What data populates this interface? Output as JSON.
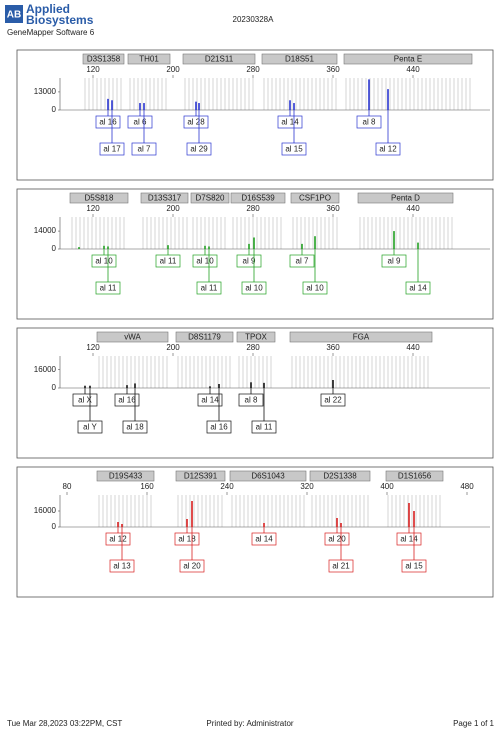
{
  "header": {
    "logo_mark": "AB",
    "brand_line1": "Applied",
    "brand_line2": "Biosystems",
    "software": "GeneMapper Software 6",
    "run_name": "20230328A"
  },
  "footer": {
    "timestamp": "Tue Mar 28,2023 03:22PM, CST",
    "printed_by": "Printed by: Administrator",
    "page": "Page 1 of 1"
  },
  "chart_data": [
    {
      "type": "stem",
      "color": "#2a35d0",
      "xlim": [
        87,
        517
      ],
      "xticks": [
        120,
        200,
        280,
        360,
        440
      ],
      "ylim": [
        0,
        23000
      ],
      "yticks": [
        0,
        13000
      ],
      "loci": [
        {
          "name": "D3S1358",
          "range": [
            110,
            151
          ]
        },
        {
          "name": "TH01",
          "range": [
            155,
            197
          ]
        },
        {
          "name": "D21S11",
          "range": [
            210,
            282
          ]
        },
        {
          "name": "D18S51",
          "range": [
            289,
            364
          ]
        },
        {
          "name": "Penta E",
          "range": [
            371,
            499
          ]
        }
      ],
      "x": [
        135,
        139,
        167,
        171,
        223,
        226,
        317,
        321,
        396,
        415
      ],
      "values": [
        8000,
        7000,
        5000,
        5000,
        6000,
        5000,
        7000,
        5000,
        22000,
        15000
      ],
      "calls": [
        {
          "labels": [
            "al 16",
            "al 17"
          ],
          "x": [
            135,
            139
          ]
        },
        {
          "labels": [
            "al 6",
            "al 7"
          ],
          "x": [
            167,
            171
          ]
        },
        {
          "labels": [
            "al 28",
            "al 29"
          ],
          "x": [
            223,
            226
          ]
        },
        {
          "labels": [
            "al 14",
            "al 15"
          ],
          "x": [
            317,
            321
          ]
        },
        {
          "labels": [
            "al 8",
            "al 12"
          ],
          "x": [
            396,
            415
          ]
        }
      ]
    },
    {
      "type": "stem",
      "color": "#22a022",
      "xlim": [
        87,
        517
      ],
      "xticks": [
        120,
        200,
        280,
        360,
        440
      ],
      "ylim": [
        0,
        25000
      ],
      "yticks": [
        0,
        14000
      ],
      "loci": [
        {
          "name": "D5S818",
          "range": [
            97,
            155
          ]
        },
        {
          "name": "D13S317",
          "range": [
            168,
            215
          ]
        },
        {
          "name": "D7S820",
          "range": [
            218,
            256
          ]
        },
        {
          "name": "D16S539",
          "range": [
            258,
            312
          ]
        },
        {
          "name": "CSF1PO",
          "range": [
            318,
            366
          ]
        },
        {
          "name": "Penta D",
          "range": [
            385,
            480
          ]
        }
      ],
      "x": [
        106,
        131,
        135,
        195,
        232,
        236,
        276,
        281,
        329,
        342,
        421,
        445
      ],
      "values": [
        1500,
        2500,
        2000,
        3000,
        2500,
        2000,
        4000,
        9000,
        4000,
        10000,
        14000,
        5000
      ],
      "calls": [
        {
          "labels": [
            "al 10",
            "al 11"
          ],
          "x": [
            131,
            135
          ]
        },
        {
          "labels": [
            "al 11"
          ],
          "x": [
            195
          ]
        },
        {
          "labels": [
            "al 10",
            "al 11"
          ],
          "x": [
            232,
            236
          ]
        },
        {
          "labels": [
            "al 9",
            "al 10"
          ],
          "x": [
            276,
            281
          ]
        },
        {
          "labels": [
            "al 7",
            "al 10"
          ],
          "x": [
            329,
            342
          ]
        },
        {
          "labels": [
            "al 9",
            "al 14"
          ],
          "x": [
            421,
            445
          ]
        }
      ]
    },
    {
      "type": "stem",
      "color": "#111111",
      "xlim": [
        87,
        517
      ],
      "xticks": [
        120,
        200,
        280,
        360,
        440
      ],
      "ylim": [
        0,
        28000
      ],
      "yticks": [
        0,
        16000
      ],
      "loci": [
        {
          "name": "vWA",
          "range": [
            124,
            195
          ]
        },
        {
          "name": "D8S1179",
          "range": [
            203,
            260
          ]
        },
        {
          "name": "TPOX",
          "range": [
            264,
            302
          ]
        },
        {
          "name": "FGA",
          "range": [
            317,
            459
          ]
        }
      ],
      "x": [
        112,
        117,
        154,
        162,
        237,
        246,
        278,
        291,
        360
      ],
      "values": [
        2000,
        2000,
        2500,
        4000,
        1500,
        3500,
        5000,
        4500,
        7000
      ],
      "calls": [
        {
          "labels": [
            "al X",
            "al Y"
          ],
          "x": [
            112,
            117
          ]
        },
        {
          "labels": [
            "al 16",
            "al 18"
          ],
          "x": [
            154,
            162
          ]
        },
        {
          "labels": [
            "al 14",
            "al 16"
          ],
          "x": [
            237,
            246
          ]
        },
        {
          "labels": [
            "al 8",
            "al 11"
          ],
          "x": [
            278,
            291
          ]
        },
        {
          "labels": [
            "al 22"
          ],
          "x": [
            360
          ]
        }
      ]
    },
    {
      "type": "stem",
      "color": "#d82020",
      "xlim": [
        73,
        503
      ],
      "xticks": [
        80,
        160,
        240,
        320,
        400,
        480
      ],
      "ylim": [
        0,
        32000
      ],
      "yticks": [
        0,
        16000
      ],
      "loci": [
        {
          "name": "D19S433",
          "range": [
            110,
            167
          ]
        },
        {
          "name": "D12S391",
          "range": [
            189,
            238
          ]
        },
        {
          "name": "D6S1043",
          "range": [
            243,
            319
          ]
        },
        {
          "name": "D2S1338",
          "range": [
            323,
            383
          ]
        },
        {
          "name": "D1S1656",
          "range": [
            399,
            456
          ]
        }
      ],
      "x": [
        131,
        135,
        200,
        205,
        277,
        350,
        354,
        422,
        427
      ],
      "values": [
        5000,
        3000,
        8000,
        26000,
        4000,
        9000,
        4000,
        24000,
        16000
      ],
      "calls": [
        {
          "labels": [
            "al 12",
            "al 13"
          ],
          "x": [
            131,
            135
          ]
        },
        {
          "labels": [
            "al 18",
            "al 20"
          ],
          "x": [
            200,
            205
          ]
        },
        {
          "labels": [
            "al 14"
          ],
          "x": [
            277
          ]
        },
        {
          "labels": [
            "al 20",
            "al 21"
          ],
          "x": [
            350,
            354
          ]
        },
        {
          "labels": [
            "al 14",
            "al 15"
          ],
          "x": [
            422,
            427
          ]
        }
      ]
    }
  ]
}
